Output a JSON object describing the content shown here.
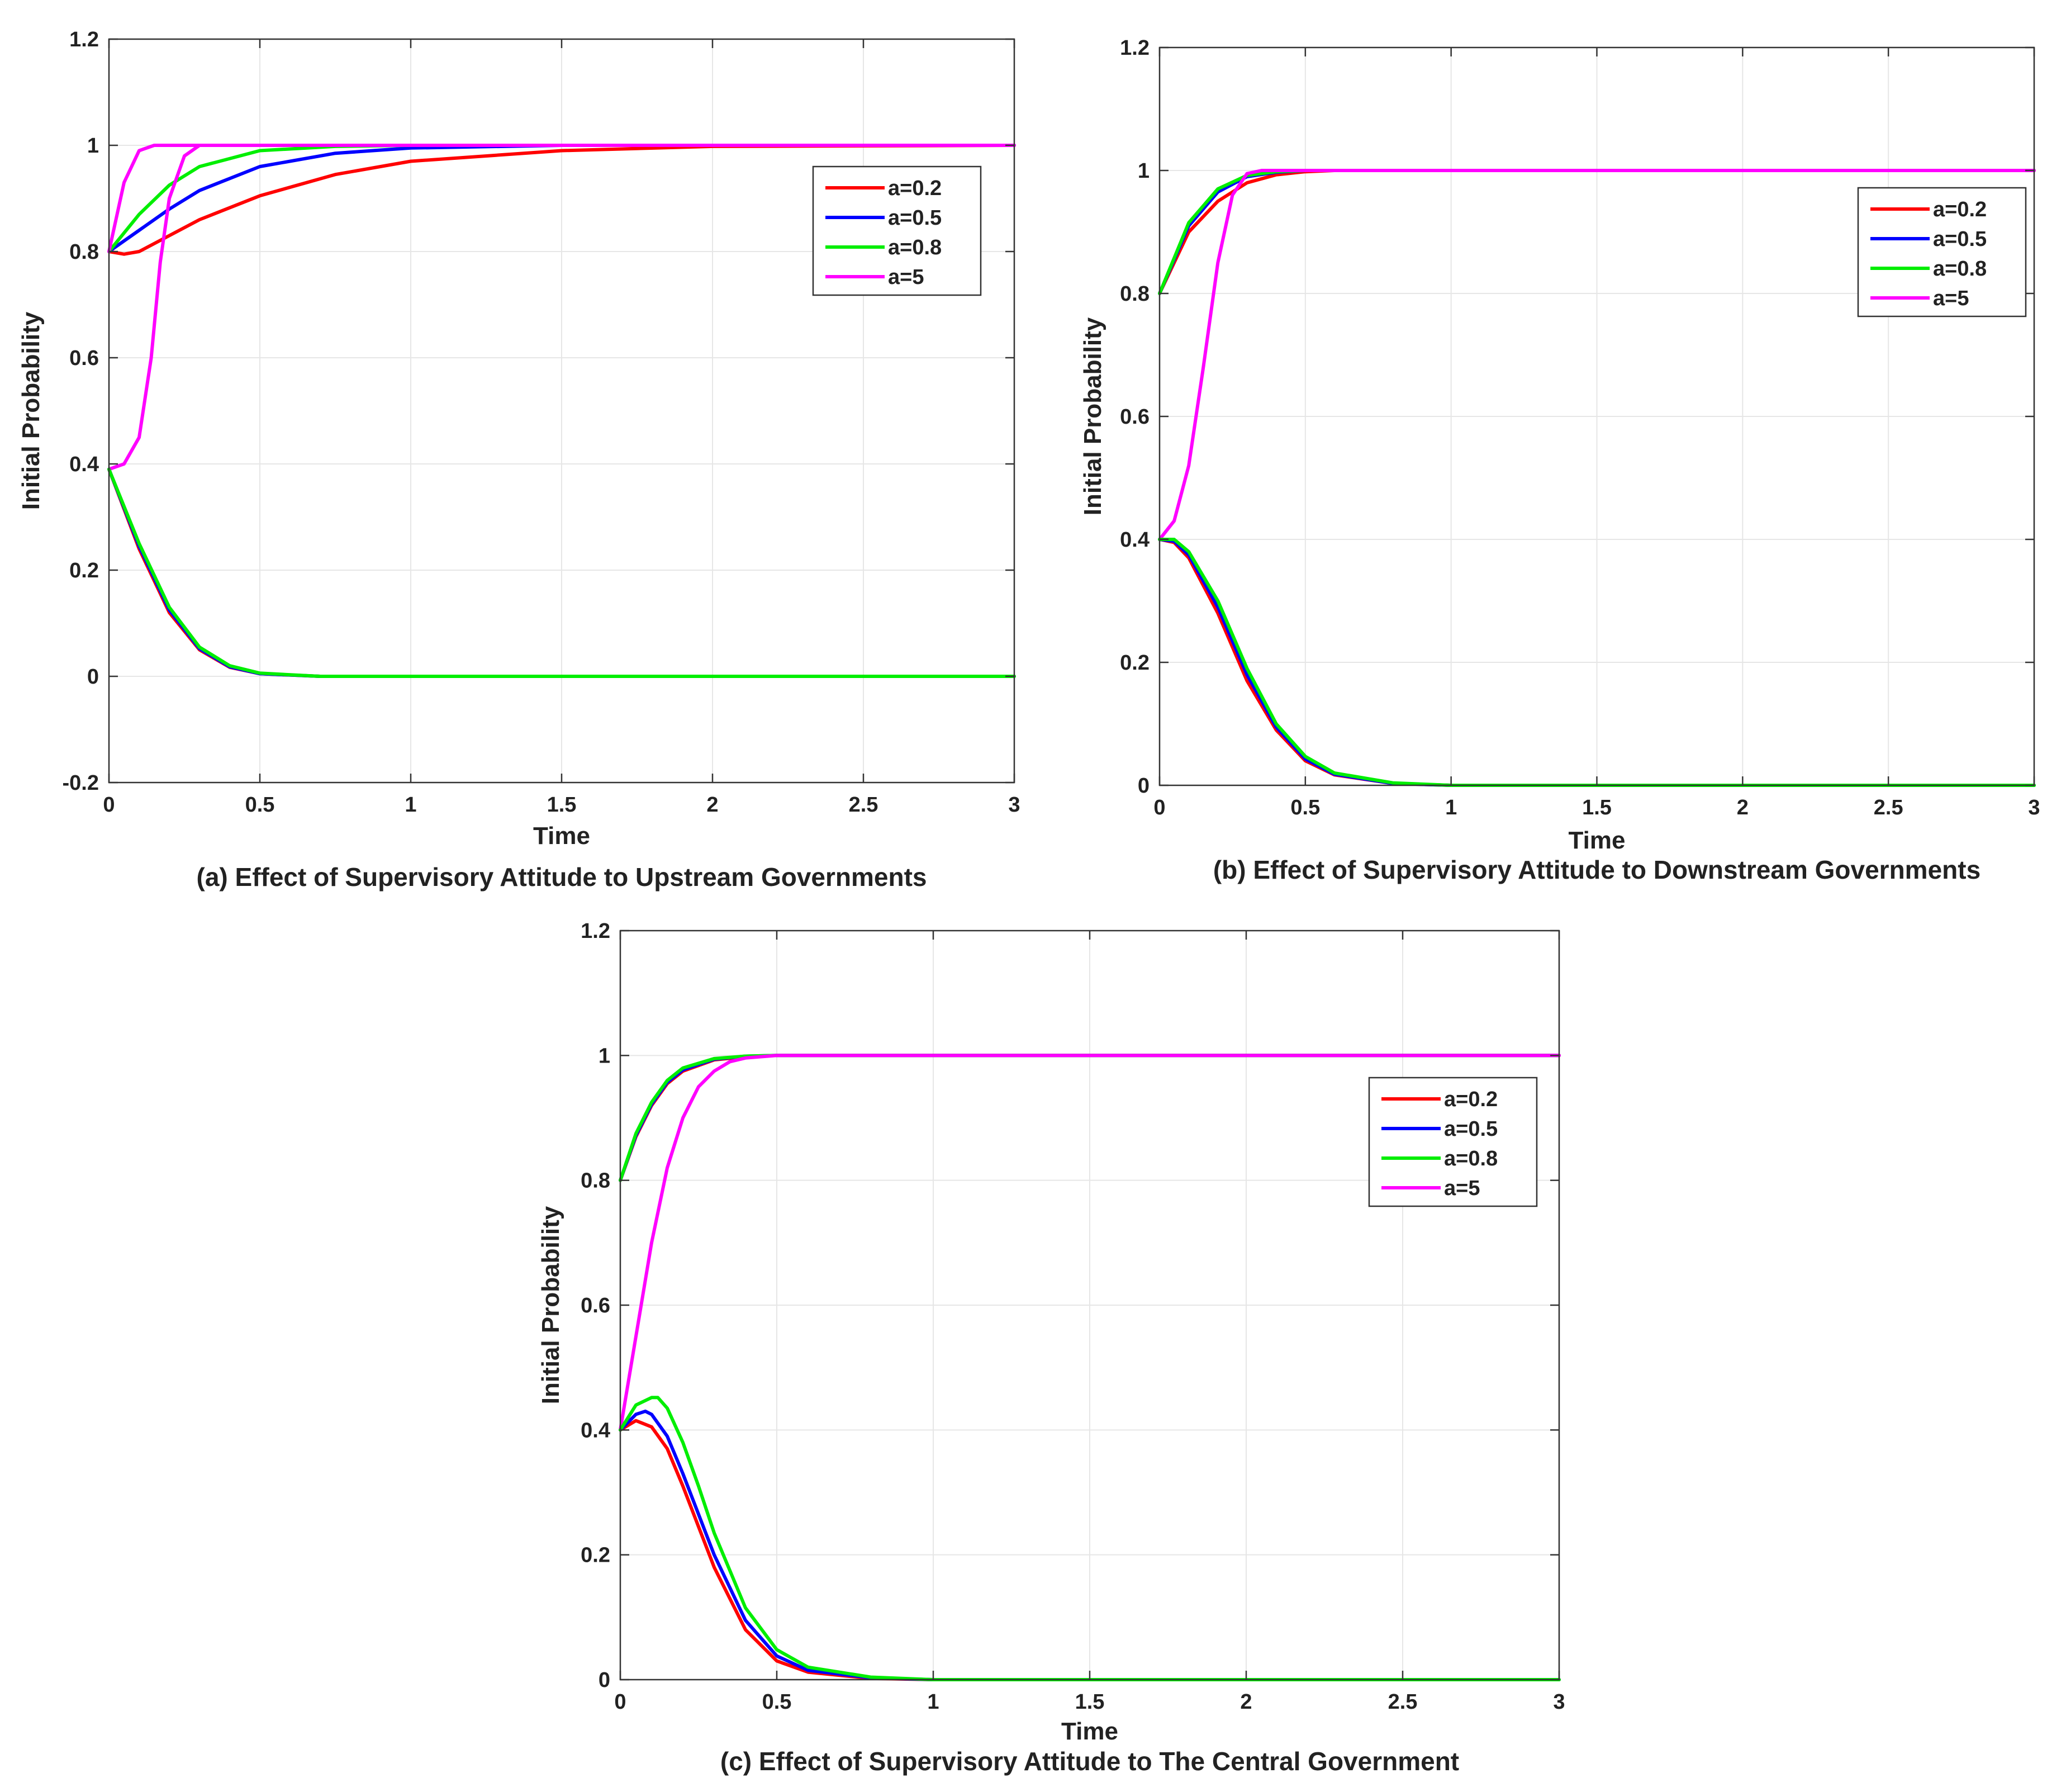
{
  "chart_data": [
    {
      "type": "line",
      "panel": "a",
      "caption": "(a) Effect of Supervisory Attitude to Upstream Governments",
      "xlabel": "Time",
      "ylabel": "Initial Probability",
      "xlim": [
        0,
        3
      ],
      "ylim": [
        -0.2,
        1.2
      ],
      "xticks": [
        "0",
        "0.5",
        "1",
        "1.5",
        "2",
        "2.5",
        "3"
      ],
      "yticks": [
        "-0.2",
        "0",
        "0.2",
        "0.4",
        "0.6",
        "0.8",
        "1",
        "1.2"
      ],
      "grid": true,
      "legend_position": "top-right",
      "legend": [
        "a=0.2",
        "a=0.5",
        "a=0.8",
        "a=5"
      ],
      "series": [
        {
          "name": "a=0.2",
          "color": "#ff0000",
          "x": [
            0,
            0.05,
            0.1,
            0.2,
            0.3,
            0.5,
            0.75,
            1,
            1.5,
            2,
            3
          ],
          "y": [
            0.8,
            0.795,
            0.8,
            0.83,
            0.86,
            0.905,
            0.945,
            0.97,
            0.99,
            0.998,
            1.0
          ]
        },
        {
          "name": "a=0.5",
          "color": "#0000ff",
          "x": [
            0,
            0.1,
            0.2,
            0.3,
            0.5,
            0.75,
            1,
            1.5,
            3
          ],
          "y": [
            0.8,
            0.84,
            0.88,
            0.915,
            0.96,
            0.985,
            0.995,
            1.0,
            1.0
          ]
        },
        {
          "name": "a=0.8",
          "color": "#00ee00",
          "x": [
            0,
            0.1,
            0.2,
            0.3,
            0.5,
            0.75,
            1,
            3
          ],
          "y": [
            0.8,
            0.87,
            0.925,
            0.96,
            0.99,
            0.998,
            1.0,
            1.0
          ]
        },
        {
          "name": "a=5",
          "color": "#ff00ff",
          "x": [
            0,
            0.05,
            0.1,
            0.15,
            3
          ],
          "y": [
            0.8,
            0.93,
            0.99,
            1.0,
            1.0
          ]
        },
        {
          "name": "a=5",
          "color": "#ff00ff",
          "x": [
            0,
            0.05,
            0.1,
            0.14,
            0.17,
            0.2,
            0.25,
            0.3,
            3
          ],
          "y": [
            0.39,
            0.4,
            0.45,
            0.6,
            0.78,
            0.9,
            0.98,
            1.0,
            1.0
          ]
        },
        {
          "name": "a=0.2",
          "color": "#ff0000",
          "x": [
            0,
            0.1,
            0.2,
            0.3,
            0.4,
            0.5,
            0.7,
            1,
            3
          ],
          "y": [
            0.39,
            0.24,
            0.12,
            0.05,
            0.017,
            0.005,
            0.0,
            0.0,
            0.0
          ]
        },
        {
          "name": "a=0.5",
          "color": "#0000ff",
          "x": [
            0,
            0.1,
            0.2,
            0.3,
            0.4,
            0.5,
            0.7,
            1,
            3
          ],
          "y": [
            0.39,
            0.245,
            0.125,
            0.052,
            0.018,
            0.005,
            0.0,
            0.0,
            0.0
          ]
        },
        {
          "name": "a=0.8",
          "color": "#00ee00",
          "x": [
            0,
            0.1,
            0.2,
            0.3,
            0.4,
            0.5,
            0.7,
            1,
            3
          ],
          "y": [
            0.39,
            0.25,
            0.13,
            0.055,
            0.02,
            0.006,
            0.0,
            0.0,
            0.0
          ]
        }
      ]
    },
    {
      "type": "line",
      "panel": "b",
      "caption": "(b) Effect of Supervisory Attitude to Downstream Governments",
      "xlabel": "Time",
      "ylabel": "Initial Probability",
      "xlim": [
        0,
        3
      ],
      "ylim": [
        0,
        1.2
      ],
      "xticks": [
        "0",
        "0.5",
        "1",
        "1.5",
        "2",
        "2.5",
        "3"
      ],
      "yticks": [
        "0",
        "0.2",
        "0.4",
        "0.6",
        "0.8",
        "1",
        "1.2"
      ],
      "grid": true,
      "legend_position": "top-right",
      "legend": [
        "a=0.2",
        "a=0.5",
        "a=0.8",
        "a=5"
      ],
      "series": [
        {
          "name": "a=0.2",
          "color": "#ff0000",
          "x": [
            0,
            0.1,
            0.2,
            0.3,
            0.4,
            0.5,
            0.6,
            3
          ],
          "y": [
            0.8,
            0.9,
            0.95,
            0.98,
            0.993,
            0.998,
            1.0,
            1.0
          ]
        },
        {
          "name": "a=0.5",
          "color": "#0000ff",
          "x": [
            0,
            0.1,
            0.2,
            0.3,
            0.4,
            0.5,
            3
          ],
          "y": [
            0.8,
            0.91,
            0.965,
            0.99,
            0.997,
            1.0,
            1.0
          ]
        },
        {
          "name": "a=0.8",
          "color": "#00ee00",
          "x": [
            0,
            0.1,
            0.2,
            0.3,
            0.4,
            0.5,
            3
          ],
          "y": [
            0.8,
            0.915,
            0.97,
            0.992,
            0.998,
            1.0,
            1.0
          ]
        },
        {
          "name": "a=5",
          "color": "#ff00ff",
          "x": [
            0,
            0.05,
            0.1,
            0.15,
            0.2,
            0.25,
            0.3,
            0.35,
            3
          ],
          "y": [
            0.4,
            0.43,
            0.52,
            0.68,
            0.85,
            0.96,
            0.995,
            1.0,
            1.0
          ]
        },
        {
          "name": "a=0.2",
          "color": "#ff0000",
          "x": [
            0,
            0.05,
            0.1,
            0.2,
            0.3,
            0.4,
            0.5,
            0.6,
            0.8,
            1,
            3
          ],
          "y": [
            0.4,
            0.395,
            0.37,
            0.28,
            0.17,
            0.09,
            0.04,
            0.017,
            0.003,
            0.0,
            0.0
          ]
        },
        {
          "name": "a=0.5",
          "color": "#0000ff",
          "x": [
            0,
            0.05,
            0.1,
            0.2,
            0.3,
            0.4,
            0.5,
            0.6,
            0.8,
            1,
            3
          ],
          "y": [
            0.4,
            0.397,
            0.375,
            0.29,
            0.18,
            0.095,
            0.043,
            0.018,
            0.003,
            0.0,
            0.0
          ]
        },
        {
          "name": "a=0.8",
          "color": "#00ee00",
          "x": [
            0,
            0.05,
            0.1,
            0.2,
            0.3,
            0.4,
            0.5,
            0.6,
            0.8,
            1,
            3
          ],
          "y": [
            0.4,
            0.4,
            0.38,
            0.3,
            0.19,
            0.1,
            0.047,
            0.02,
            0.004,
            0.0,
            0.0
          ]
        }
      ]
    },
    {
      "type": "line",
      "panel": "c",
      "caption": "(c) Effect of Supervisory Attitude to The Central Government",
      "xlabel": "Time",
      "ylabel": "Initial Probability",
      "xlim": [
        0,
        3
      ],
      "ylim": [
        0,
        1.2
      ],
      "xticks": [
        "0",
        "0.5",
        "1",
        "1.5",
        "2",
        "2.5",
        "3"
      ],
      "yticks": [
        "0",
        "0.2",
        "0.4",
        "0.6",
        "0.8",
        "1",
        "1.2"
      ],
      "grid": true,
      "legend_position": "top-right",
      "legend": [
        "a=0.2",
        "a=0.5",
        "a=0.8",
        "a=5"
      ],
      "series": [
        {
          "name": "a=0.2",
          "color": "#ff0000",
          "x": [
            0,
            0.05,
            0.1,
            0.15,
            0.2,
            0.3,
            0.4,
            0.5,
            3
          ],
          "y": [
            0.8,
            0.87,
            0.92,
            0.955,
            0.975,
            0.993,
            0.998,
            1.0,
            1.0
          ]
        },
        {
          "name": "a=0.5",
          "color": "#0000ff",
          "x": [
            0,
            0.05,
            0.1,
            0.15,
            0.2,
            0.3,
            0.4,
            0.5,
            3
          ],
          "y": [
            0.8,
            0.872,
            0.922,
            0.957,
            0.977,
            0.994,
            0.999,
            1.0,
            1.0
          ]
        },
        {
          "name": "a=0.8",
          "color": "#00ee00",
          "x": [
            0,
            0.05,
            0.1,
            0.15,
            0.2,
            0.3,
            0.4,
            0.5,
            3
          ],
          "y": [
            0.8,
            0.875,
            0.925,
            0.96,
            0.98,
            0.995,
            0.999,
            1.0,
            1.0
          ]
        },
        {
          "name": "a=5",
          "color": "#ff00ff",
          "x": [
            0,
            0.05,
            0.1,
            0.15,
            0.2,
            0.25,
            0.3,
            0.35,
            0.4,
            0.5,
            3
          ],
          "y": [
            0.4,
            0.55,
            0.7,
            0.82,
            0.9,
            0.95,
            0.975,
            0.99,
            0.996,
            1.0,
            1.0
          ]
        },
        {
          "name": "a=0.2",
          "color": "#ff0000",
          "x": [
            0,
            0.05,
            0.1,
            0.15,
            0.2,
            0.25,
            0.3,
            0.4,
            0.5,
            0.6,
            0.8,
            1,
            3
          ],
          "y": [
            0.4,
            0.415,
            0.405,
            0.37,
            0.31,
            0.245,
            0.18,
            0.08,
            0.03,
            0.012,
            0.002,
            0.0,
            0.0
          ]
        },
        {
          "name": "a=0.5",
          "color": "#0000ff",
          "x": [
            0,
            0.05,
            0.08,
            0.1,
            0.15,
            0.2,
            0.25,
            0.3,
            0.4,
            0.5,
            0.6,
            0.8,
            1,
            3
          ],
          "y": [
            0.4,
            0.425,
            0.43,
            0.425,
            0.39,
            0.33,
            0.265,
            0.2,
            0.095,
            0.038,
            0.015,
            0.003,
            0.0,
            0.0
          ]
        },
        {
          "name": "a=0.8",
          "color": "#00ee00",
          "x": [
            0,
            0.05,
            0.1,
            0.12,
            0.15,
            0.2,
            0.25,
            0.3,
            0.4,
            0.5,
            0.6,
            0.8,
            1,
            3
          ],
          "y": [
            0.4,
            0.44,
            0.452,
            0.452,
            0.435,
            0.38,
            0.31,
            0.235,
            0.115,
            0.048,
            0.02,
            0.004,
            0.0,
            0.0
          ]
        }
      ]
    }
  ]
}
